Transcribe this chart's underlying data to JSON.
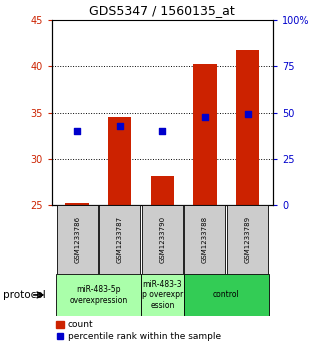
{
  "title": "GDS5347 / 1560135_at",
  "samples": [
    "GSM1233786",
    "GSM1233787",
    "GSM1233790",
    "GSM1233788",
    "GSM1233789"
  ],
  "count_values": [
    25.2,
    34.5,
    28.1,
    40.2,
    41.8
  ],
  "count_base": 25.0,
  "percentile_values": [
    33.0,
    33.5,
    33.0,
    34.5,
    34.8
  ],
  "ylim_left": [
    25,
    45
  ],
  "ylim_right": [
    0,
    100
  ],
  "yticks_left": [
    25,
    30,
    35,
    40,
    45
  ],
  "yticks_right": [
    0,
    25,
    50,
    75,
    100
  ],
  "bar_color": "#cc2200",
  "dot_color": "#0000cc",
  "bar_width": 0.55,
  "dot_size": 18,
  "groups": [
    {
      "label": "miR-483-5p\noverexpression",
      "color": "#aaffaa",
      "span": [
        0,
        2
      ]
    },
    {
      "label": "miR-483-3\np overexpr\nession",
      "color": "#aaffaa",
      "span": [
        2,
        3
      ]
    },
    {
      "label": "control",
      "color": "#33cc55",
      "span": [
        3,
        5
      ]
    }
  ],
  "protocol_label": "protocol",
  "legend_count_label": "count",
  "legend_percentile_label": "percentile rank within the sample",
  "bg_color": "#ffffff",
  "plot_bg": "#ffffff",
  "sample_box_color": "#cccccc",
  "tick_color_left": "#cc2200",
  "tick_color_right": "#0000cc",
  "grid_vals": [
    30,
    35,
    40
  ],
  "ytick_right_labels": [
    "0",
    "25",
    "50",
    "75",
    "100%"
  ]
}
